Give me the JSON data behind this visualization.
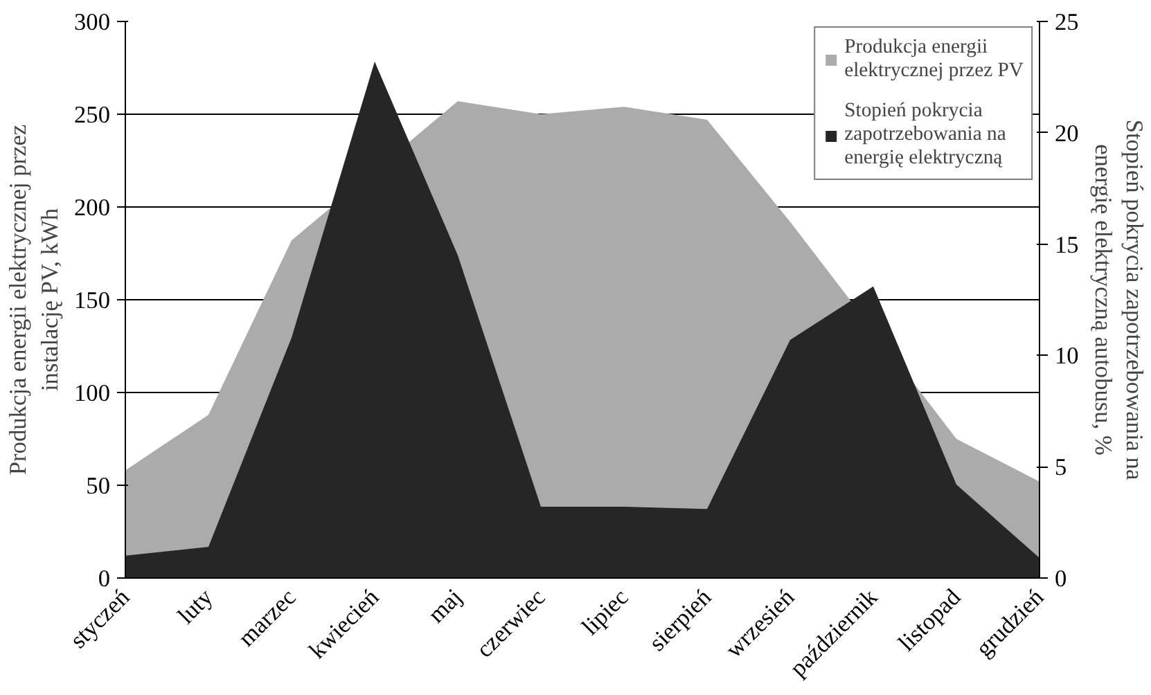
{
  "chart_data": {
    "type": "area",
    "categories": [
      "styczeń",
      "luty",
      "marzec",
      "kwiecień",
      "maj",
      "czerwiec",
      "lipiec",
      "sierpień",
      "wrzesień",
      "październik",
      "listopad",
      "grudzień"
    ],
    "series": [
      {
        "name": "Produkcja energii elektrycznej przez PV",
        "color": "#ababab",
        "values": [
          58,
          88,
          182,
          null,
          257,
          250,
          254,
          247,
          192,
          null,
          75,
          52
        ]
      },
      {
        "name": "Stopień pokrycia zapotrzebowania na energię elektryczną",
        "color": "#262626",
        "axis": "y2",
        "values": [
          1.0,
          1.4,
          10.8,
          23.2,
          14.5,
          3.2,
          3.2,
          3.1,
          10.7,
          13.1,
          4.2,
          0.9
        ]
      }
    ],
    "ylabel": "Produkcja energii elektrycznej przez instalację PV, kWh",
    "y2label": "Stopień pokrycia zapotrzebowania na energię elektryczną autobusu, %",
    "ylim": [
      0,
      300
    ],
    "yticks": [
      0,
      50,
      100,
      150,
      200,
      250,
      300
    ],
    "y2lim": [
      0,
      25
    ],
    "y2ticks": [
      0,
      5,
      10,
      15,
      20,
      25
    ],
    "grid": "y",
    "legend": "top right"
  }
}
